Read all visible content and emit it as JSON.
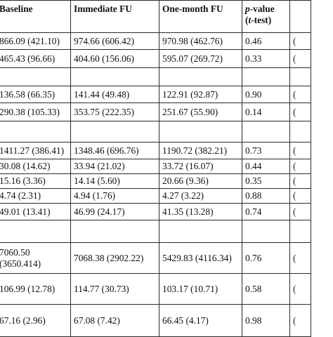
{
  "header": {
    "baseline": "Baseline",
    "immediate_fu": "Immediate FU",
    "one_month_fu": "One-month FU",
    "p_value_italic": "p",
    "p_value_rest": "-value",
    "t_test_open": "(",
    "t_test_italic": "t",
    "t_test_rest": "-test)"
  },
  "rows": [
    {
      "baseline": "866.09 (421.10)",
      "immediate": "974.66 (606.42)",
      "one_month": "970.98 (462.76)",
      "p": "0.46"
    },
    {
      "baseline": "465.43 (96.66)",
      "immediate": "404.60 (156.06)",
      "one_month": "595.07 (269.72)",
      "p": "0.33"
    },
    {
      "baseline": "",
      "immediate": "",
      "one_month": "",
      "p": ""
    },
    {
      "baseline": "136.58 (66.35)",
      "immediate": "141.44 (49.48)",
      "one_month": "122.91 (92.87)",
      "p": "0.90"
    },
    {
      "baseline": "290.38 (105.33)",
      "immediate": "353.75 (222.35)",
      "one_month": "251.67 (55.90)",
      "p": "0.14"
    },
    {
      "baseline": "",
      "immediate": "",
      "one_month": "",
      "p": ""
    },
    {
      "baseline": "1411.27 (386.41)",
      "immediate": "1348.46 (696.76)",
      "one_month": "1190.72 (382.21)",
      "p": "0.73"
    },
    {
      "baseline": "30.08 (14.62)",
      "immediate": "33.94 (21.02)",
      "one_month": "33.72 (16.07)",
      "p": "0.44"
    },
    {
      "baseline": "15.16 (3.36)",
      "immediate": "14.14 (5.60)",
      "one_month": "20.66 (9.36)",
      "p": "0.35"
    },
    {
      "baseline": "4.74 (2.31)",
      "immediate": "4.94 (1.76)",
      "one_month": "4.27 (3.22)",
      "p": "0.88"
    },
    {
      "baseline": "49.01 (13.41)",
      "immediate": "46.99 (24.17)",
      "one_month": "41.35 (13.28)",
      "p": "0.74"
    },
    {
      "baseline": "",
      "immediate": "",
      "one_month": "",
      "p": ""
    },
    {
      "baseline": "7060.50 (3650.414)",
      "immediate": "7068.38 (2902.22)",
      "one_month": "5429.83 (4116.34)",
      "p": "0.76"
    },
    {
      "baseline": "106.99 (12.78)",
      "immediate": "114.77 (30.73)",
      "one_month": "103.17 (10.71)",
      "p": "0.58"
    },
    {
      "baseline": "67.16 (2.96)",
      "immediate": "67.08 (7.42)",
      "one_month": "66.45 (4.17)",
      "p": "0.98"
    }
  ],
  "edge_column": [
    "(",
    "(",
    "",
    "(",
    "(",
    "",
    "(",
    "(",
    "(",
    "(",
    "(",
    "",
    "(",
    "(",
    "("
  ]
}
